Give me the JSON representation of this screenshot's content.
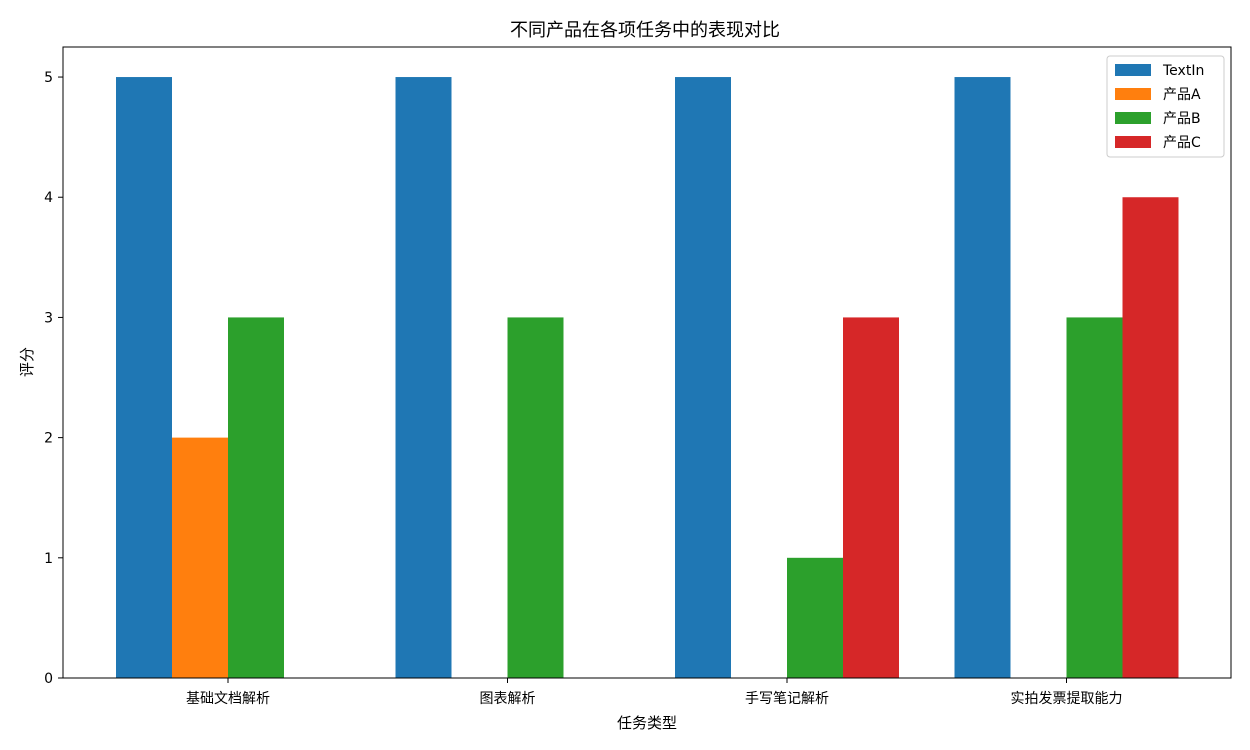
{
  "chart_data": {
    "type": "bar",
    "title": "不同产品在各项任务中的表现对比",
    "xlabel": "任务类型",
    "ylabel": "评分",
    "categories": [
      "基础文档解析",
      "图表解析",
      "手写笔记解析",
      "实拍发票提取能力"
    ],
    "ylim": [
      0,
      5.25
    ],
    "yticks": [
      0,
      1,
      2,
      3,
      4,
      5
    ],
    "grid": false,
    "legend_position": "top-right",
    "series": [
      {
        "name": "TextIn",
        "color": "#1f77b4",
        "values": [
          5,
          5,
          5,
          5
        ]
      },
      {
        "name": "产品A",
        "color": "#ff7f0e",
        "values": [
          2,
          0,
          0,
          0
        ]
      },
      {
        "name": "产品B",
        "color": "#2ca02c",
        "values": [
          3,
          3,
          1,
          3
        ]
      },
      {
        "name": "产品C",
        "color": "#d62728",
        "values": [
          0,
          0,
          3,
          4
        ]
      }
    ]
  }
}
